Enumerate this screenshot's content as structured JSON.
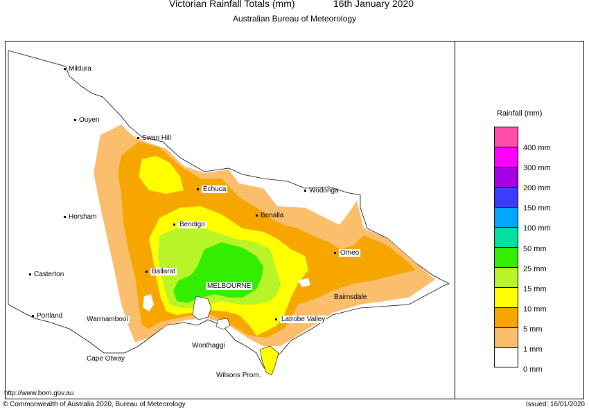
{
  "header": {
    "title": "Victorian Rainfall Totals (mm)",
    "date": "16th January 2020",
    "subtitle": "Australian Bureau of Meteorology"
  },
  "places": {
    "mildura": "Mildura",
    "ouyen": "Ouyen",
    "swan_hill": "Swan Hill",
    "horsham": "Horsham",
    "echuca": "Echuca",
    "wodonga": "Wodonga",
    "bendigo": "Bendigo",
    "benalla": "Benalla",
    "casterton": "Casterton",
    "ballarat": "Ballarat",
    "omeo": "Omeo",
    "melbourne": "MELBOURNE",
    "portland": "Portland",
    "warrnambool": "Warrnambool",
    "bairnsdale": "Bairnsdale",
    "latrobe_valley": "Latrobe Valley",
    "wonthaggi": "Wonthaggi",
    "cape_otway": "Cape Otway",
    "wilsons_prom": "Wilsons Prom."
  },
  "legend": {
    "title": "Rainfall (mm)",
    "items": [
      {
        "label": "400 mm",
        "color": "#ff4fa8"
      },
      {
        "label": "300 mm",
        "color": "#ff00ff"
      },
      {
        "label": "200 mm",
        "color": "#a500e6"
      },
      {
        "label": "150 mm",
        "color": "#3c3cff"
      },
      {
        "label": "100 mm",
        "color": "#00a6ff"
      },
      {
        "label": "50 mm",
        "color": "#00e0a0"
      },
      {
        "label": "25 mm",
        "color": "#33ee00"
      },
      {
        "label": "15 mm",
        "color": "#b8f528"
      },
      {
        "label": "10 mm",
        "color": "#ffff00"
      },
      {
        "label": "5 mm",
        "color": "#f7a600"
      },
      {
        "label": "1 mm",
        "color": "#fbbe6d"
      },
      {
        "label": "0 mm",
        "color": "#ffffff"
      }
    ]
  },
  "footer": {
    "url": "http://www.bom.gov.au",
    "copyright": "© Commonwealth of Australia 2020, Bureau of Meteorology",
    "issued": "Issued: 16/01/2020"
  }
}
